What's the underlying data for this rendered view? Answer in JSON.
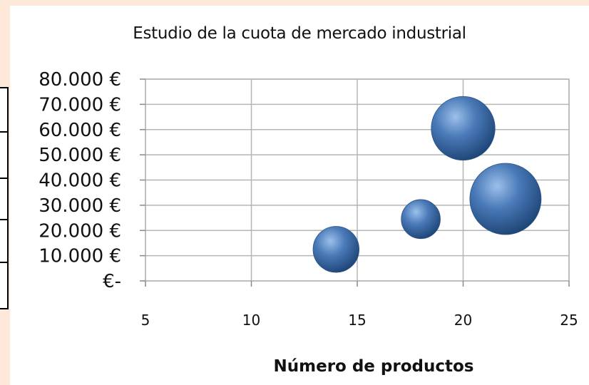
{
  "chart_data": {
    "type": "scatter",
    "subtype": "bubble",
    "title": "Estudio de la cuota de mercado industrial",
    "xlabel": "Número de productos",
    "ylabel": "",
    "xlim": [
      5,
      25
    ],
    "ylim": [
      0,
      80000
    ],
    "x_ticks": [
      5,
      10,
      15,
      20,
      25
    ],
    "x_tick_labels": [
      "5",
      "10",
      "15",
      "20",
      "25"
    ],
    "y_ticks": [
      0,
      10000,
      20000,
      30000,
      40000,
      50000,
      60000,
      70000,
      80000
    ],
    "y_tick_labels": [
      "€-",
      "10.000 €",
      "20.000 €",
      "30.000 €",
      "40.000 €",
      "50.000 €",
      "60.000 €",
      "70.000 €",
      "80.000 €"
    ],
    "grid": true,
    "bubble_color": "#4a7ab8",
    "series": [
      {
        "points": [
          {
            "x": 14,
            "y": 12500,
            "size": 25
          },
          {
            "x": 18,
            "y": 24500,
            "size": 18
          },
          {
            "x": 20,
            "y": 60500,
            "size": 48
          },
          {
            "x": 22,
            "y": 32500,
            "size": 60
          }
        ]
      }
    ]
  }
}
